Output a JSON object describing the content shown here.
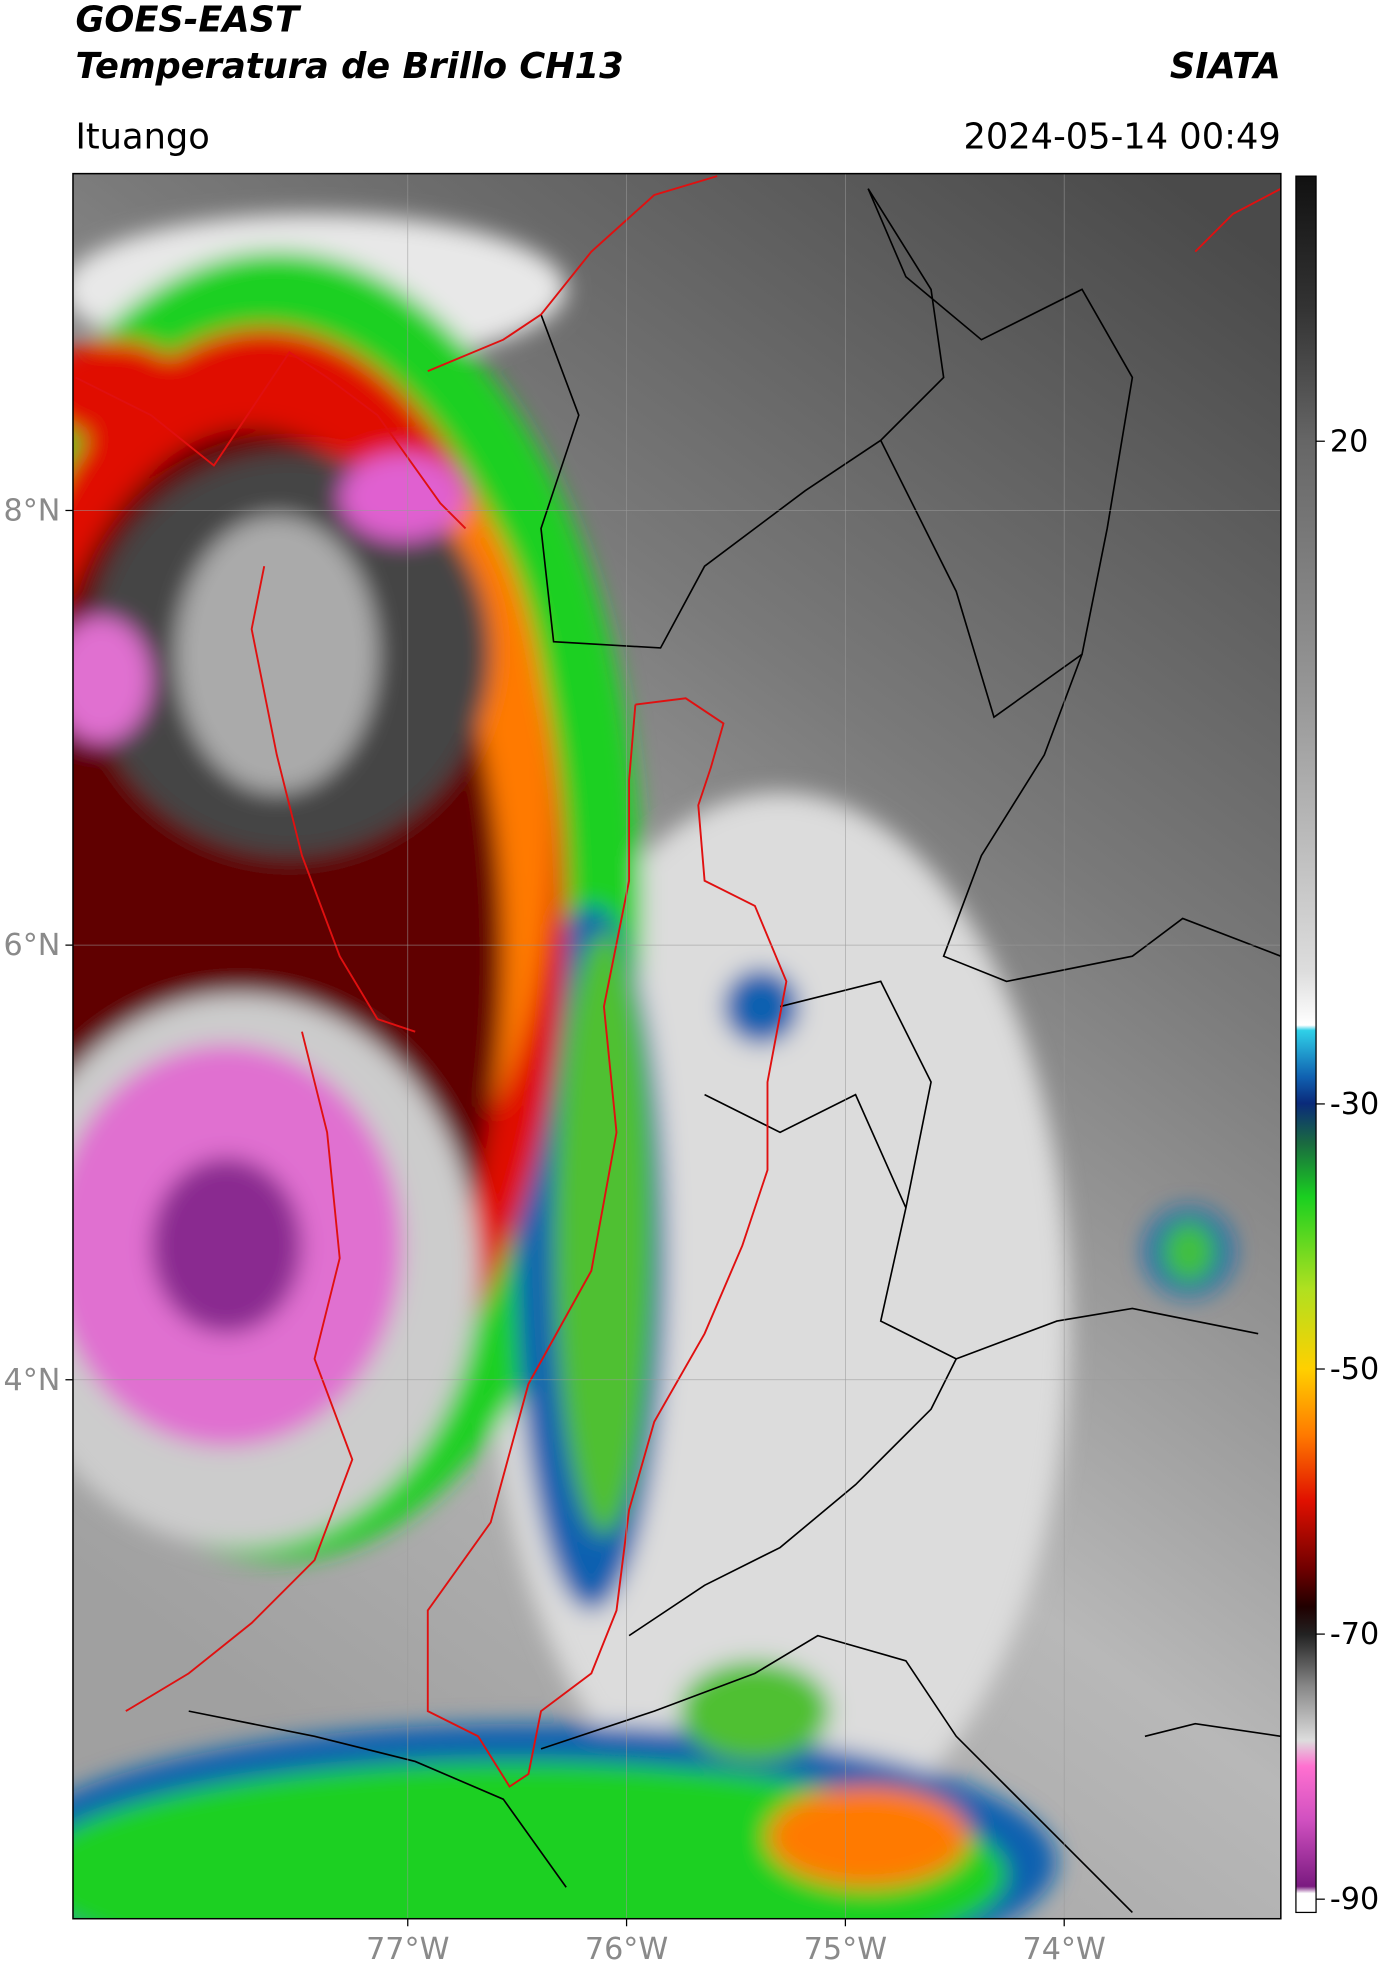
{
  "header": {
    "title": "GOES-EAST",
    "subtitle": "Temperatura de Brillo CH13",
    "brand": "SIATA",
    "location": "Ituango",
    "datetime": "2024-05-14 00:49"
  },
  "chart_data": {
    "type": "map",
    "xlim": [
      -78.53,
      -73.01
    ],
    "ylim": [
      1.52,
      9.55
    ],
    "xticks": [
      {
        "value": -77,
        "label": "77°W"
      },
      {
        "value": -76,
        "label": "76°W"
      },
      {
        "value": -75,
        "label": "75°W"
      },
      {
        "value": -74,
        "label": "74°W"
      }
    ],
    "yticks": [
      {
        "value": 8,
        "label": "8°N"
      },
      {
        "value": 6,
        "label": "6°N"
      },
      {
        "value": 4,
        "label": "4°N"
      }
    ],
    "grid": true,
    "colorbar": {
      "lim": [
        -91,
        40
      ],
      "ticks": [
        20,
        -30,
        -50,
        -70,
        -90
      ]
    }
  }
}
